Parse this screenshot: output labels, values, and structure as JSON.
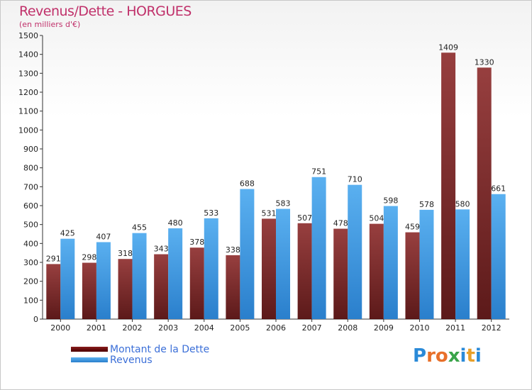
{
  "header": {
    "title": "Revenus/Dette - HORGUES",
    "subtitle": "(en milliers d'€)"
  },
  "colors": {
    "dette": "#6b0a0a",
    "revenus": "#3f9be6",
    "title": "#c0306a"
  },
  "legend": {
    "dette_label": "Montant de la Dette",
    "revenus_label": "Revenus"
  },
  "logo": {
    "text": "Proxiti"
  },
  "chart_data": {
    "type": "bar",
    "title": "Revenus/Dette - HORGUES",
    "subtitle": "(en milliers d'€)",
    "categories": [
      "2000",
      "2001",
      "2002",
      "2003",
      "2004",
      "2005",
      "2006",
      "2007",
      "2008",
      "2009",
      "2010",
      "2011",
      "2012"
    ],
    "series": [
      {
        "name": "Montant de la Dette",
        "values": [
          291,
          298,
          318,
          343,
          378,
          338,
          531,
          507,
          478,
          504,
          459,
          1409,
          1330
        ]
      },
      {
        "name": "Revenus",
        "values": [
          425,
          407,
          455,
          480,
          533,
          688,
          583,
          751,
          710,
          598,
          578,
          580,
          661
        ]
      }
    ],
    "ylim": [
      0,
      1500
    ],
    "yticks": [
      0,
      100,
      200,
      300,
      400,
      500,
      600,
      700,
      800,
      900,
      1000,
      1100,
      1200,
      1300,
      1400,
      1500
    ],
    "grid": false,
    "legend_position": "bottom-left"
  }
}
